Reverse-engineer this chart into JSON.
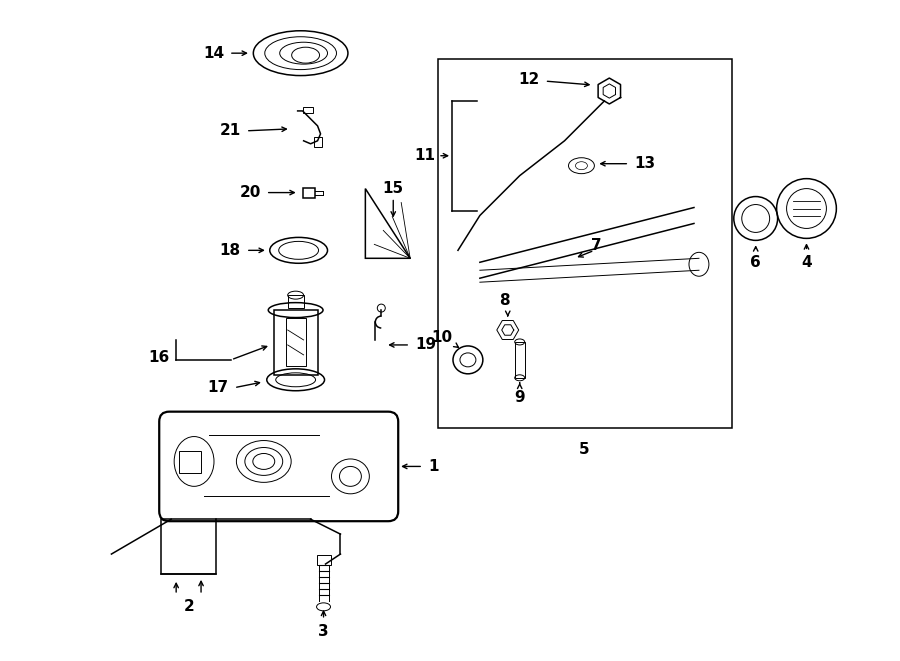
{
  "bg_color": "#ffffff",
  "line_color": "#000000",
  "lw_thin": 0.7,
  "lw_med": 1.1,
  "lw_thick": 1.6,
  "label_fs": 11
}
